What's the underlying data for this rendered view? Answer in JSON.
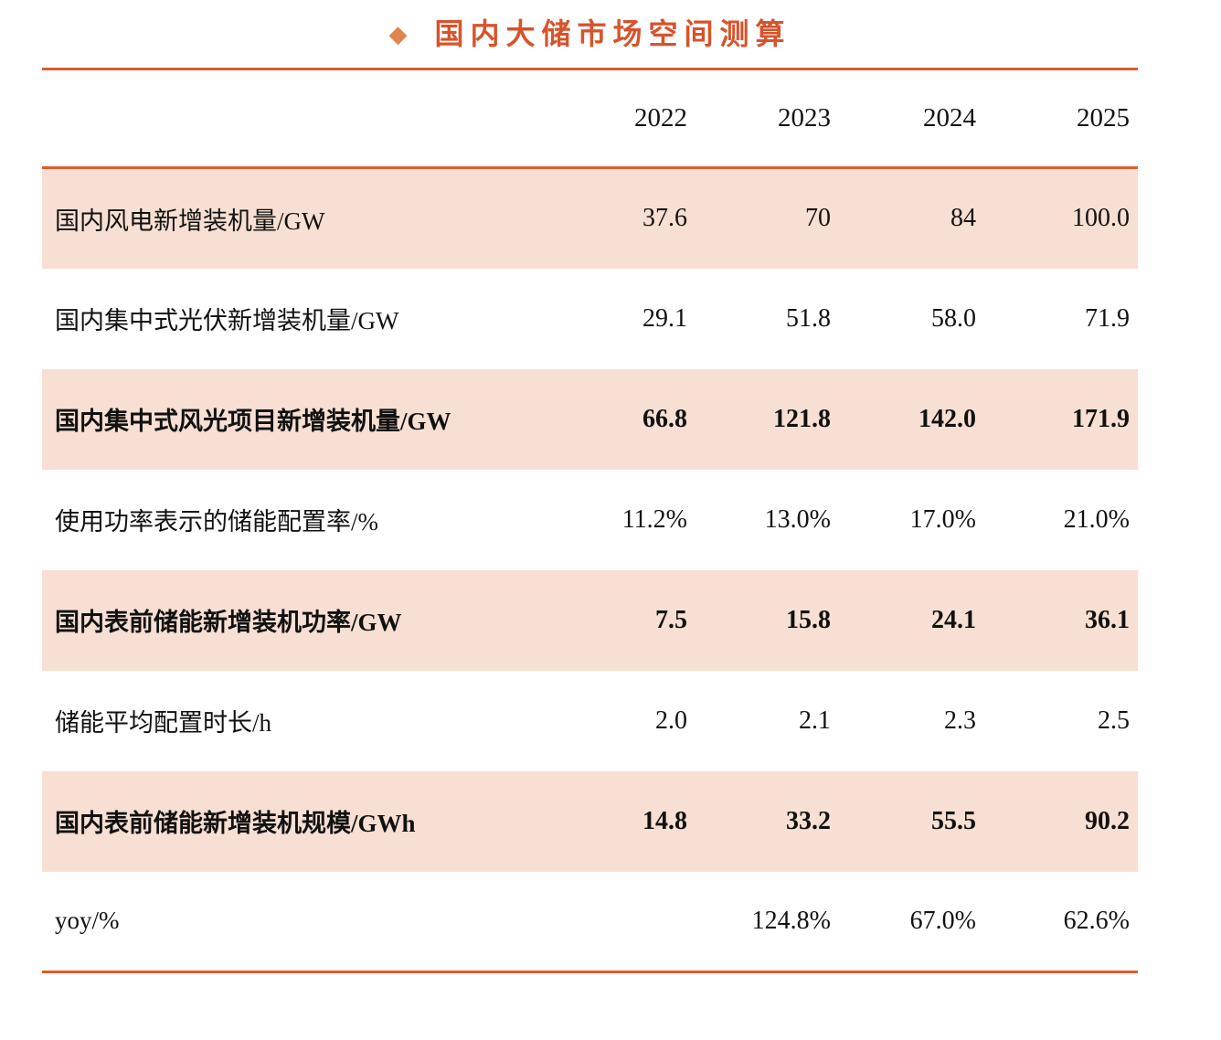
{
  "title": {
    "bullet": "◆",
    "text": "国内大储市场空间测算"
  },
  "table": {
    "year_headers": [
      "2022",
      "2023",
      "2024",
      "2025"
    ],
    "rows": [
      {
        "label": "国内风电新增装机量/GW",
        "values": [
          "37.6",
          "70",
          "84",
          "100.0"
        ],
        "shaded": true,
        "bold": false
      },
      {
        "label": "国内集中式光伏新增装机量/GW",
        "values": [
          "29.1",
          "51.8",
          "58.0",
          "71.9"
        ],
        "shaded": false,
        "bold": false
      },
      {
        "label": "国内集中式风光项目新增装机量/GW",
        "values": [
          "66.8",
          "121.8",
          "142.0",
          "171.9"
        ],
        "shaded": true,
        "bold": true
      },
      {
        "label": "使用功率表示的储能配置率/%",
        "values": [
          "11.2%",
          "13.0%",
          "17.0%",
          "21.0%"
        ],
        "shaded": false,
        "bold": false
      },
      {
        "label": "国内表前储能新增装机功率/GW",
        "values": [
          "7.5",
          "15.8",
          "24.1",
          "36.1"
        ],
        "shaded": true,
        "bold": true
      },
      {
        "label": "储能平均配置时长/h",
        "values": [
          "2.0",
          "2.1",
          "2.3",
          "2.5"
        ],
        "shaded": false,
        "bold": false
      },
      {
        "label": "国内表前储能新增装机规模/GWh",
        "values": [
          "14.8",
          "33.2",
          "55.5",
          "90.2"
        ],
        "shaded": true,
        "bold": true
      },
      {
        "label": "yoy/%",
        "values": [
          "",
          "124.8%",
          "67.0%",
          "62.6%"
        ],
        "shaded": false,
        "bold": false
      }
    ]
  },
  "colors": {
    "accent_rule": "#e05a2e",
    "title_text": "#d7532b",
    "diamond": "#e0854e",
    "row_shade": "#f8dfd3",
    "body_text": "#111111"
  }
}
